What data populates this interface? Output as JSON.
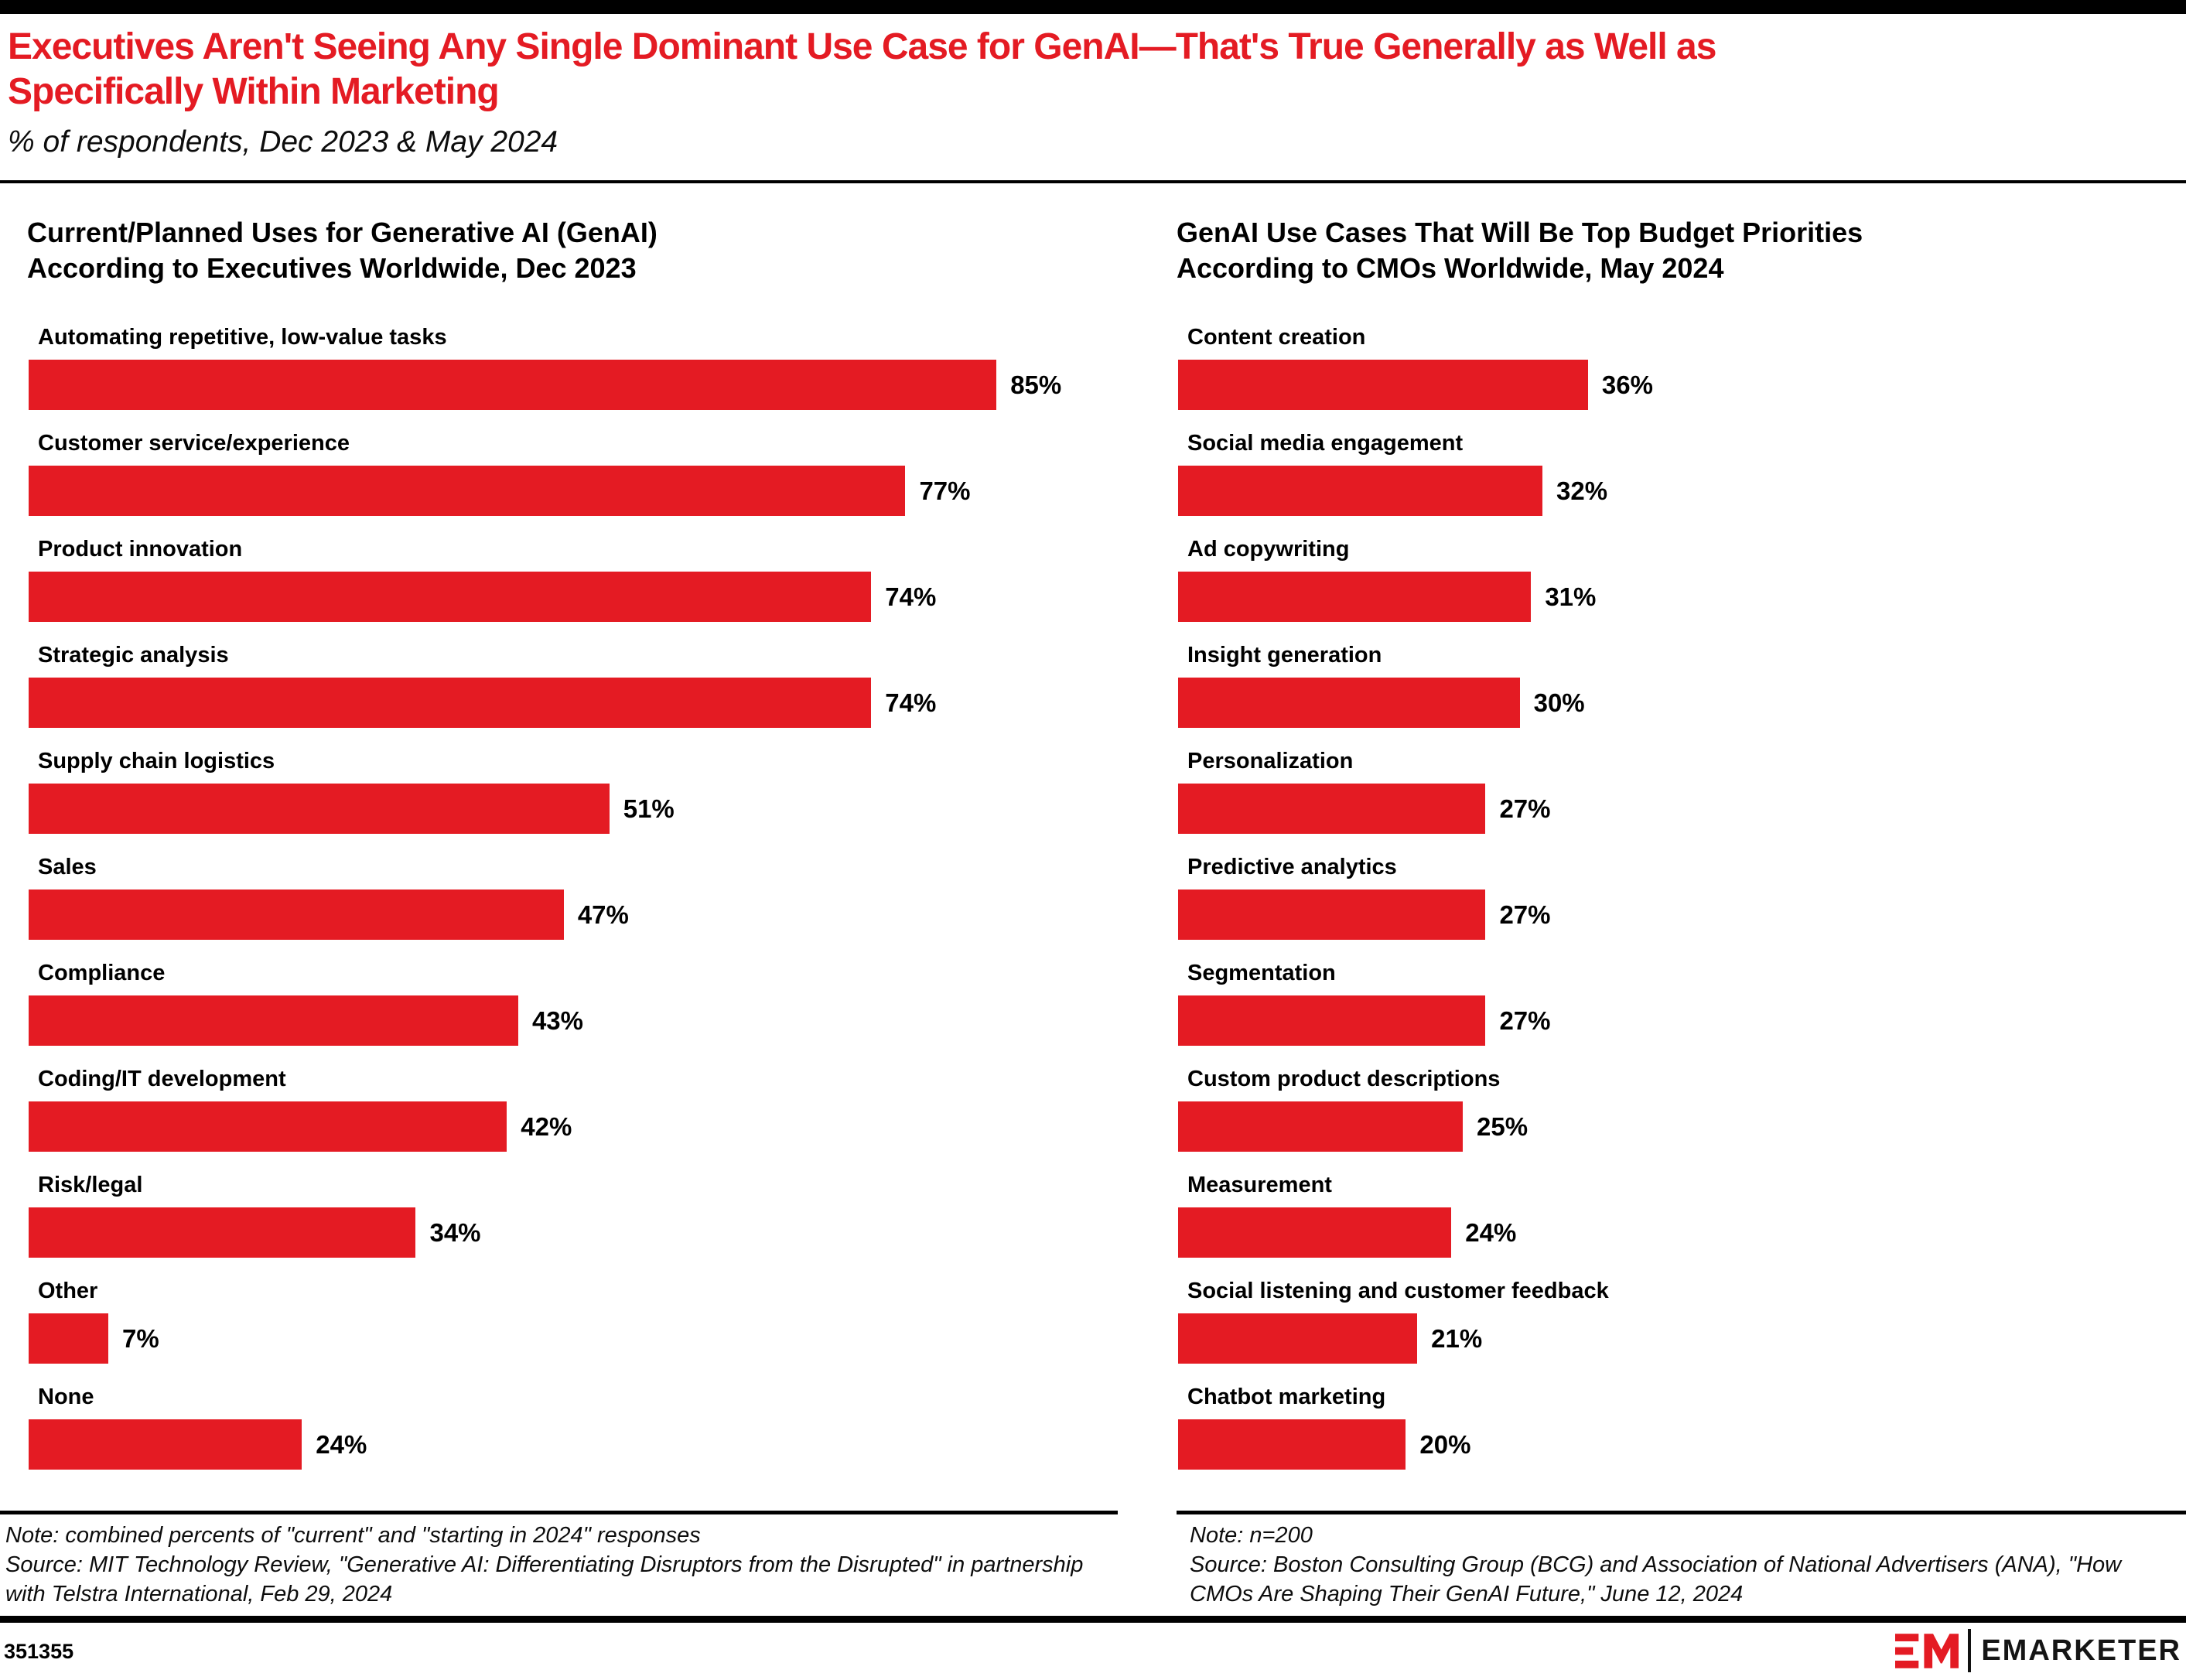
{
  "header": {
    "title_lines": [
      "Executives Aren't Seeing Any Single Dominant Use Case for GenAI—That's True Generally as Well as",
      "Specifically Within Marketing"
    ],
    "subtitle": "% of respondents, Dec 2023 & May 2024"
  },
  "chart_data": [
    {
      "type": "bar",
      "orientation": "horizontal",
      "title": "Current/Planned Uses for Generative AI (GenAI) According to Executives Worldwide, Dec 2023",
      "unit": "%",
      "categories": [
        "Automating repetitive, low-value tasks",
        "Customer service/experience",
        "Product innovation",
        "Strategic analysis",
        "Supply chain logistics",
        "Sales",
        "Compliance",
        "Coding/IT development",
        "Risk/legal",
        "Other",
        "None"
      ],
      "values": [
        85,
        77,
        74,
        74,
        51,
        47,
        43,
        42,
        34,
        7,
        24
      ],
      "value_labels": [
        "85%",
        "77%",
        "74%",
        "74%",
        "51%",
        "47%",
        "43%",
        "42%",
        "34%",
        "7%",
        "24%"
      ],
      "xlim": [
        0,
        95
      ],
      "grid": false,
      "note": "Note: combined percents of \"current\" and \"starting in 2024\" responses",
      "source": "Source: MIT Technology Review, \"Generative AI: Differentiating Disruptors from the Disrupted\" in partnership with Telstra International, Feb 29, 2024"
    },
    {
      "type": "bar",
      "orientation": "horizontal",
      "title": "GenAI Use Cases That Will Be Top Budget Priorities According to CMOs Worldwide, May 2024",
      "unit": "%",
      "categories": [
        "Content creation",
        "Social media engagement",
        "Ad copywriting",
        "Insight generation",
        "Personalization",
        "Predictive analytics",
        "Segmentation",
        "Custom product descriptions",
        "Measurement",
        "Social listening and customer feedback",
        "Chatbot marketing"
      ],
      "values": [
        36,
        32,
        31,
        30,
        27,
        27,
        27,
        25,
        24,
        21,
        20
      ],
      "value_labels": [
        "36%",
        "32%",
        "31%",
        "30%",
        "27%",
        "27%",
        "27%",
        "25%",
        "24%",
        "21%",
        "20%"
      ],
      "xlim": [
        0,
        95
      ],
      "grid": false,
      "note": "Note: n=200",
      "source": "Source:  Boston Consulting Group (BCG) and Association of National Advertisers (ANA), \"How CMOs Are Shaping Their GenAI Future,\" June 12, 2024"
    }
  ],
  "footer": {
    "chart_id": "351355",
    "brand": "EMARKETER",
    "logo_mark": "EM"
  },
  "colors": {
    "bar_red": "#e41b23",
    "title_red": "#e41b23",
    "bar_black": "#000000"
  }
}
